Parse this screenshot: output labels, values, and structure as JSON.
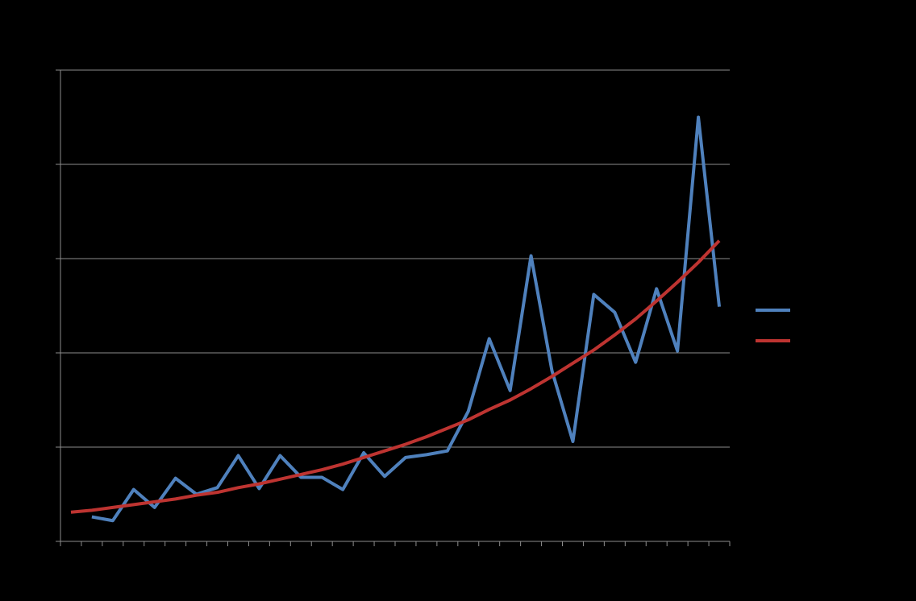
{
  "chart_data": {
    "type": "line",
    "categories": [
      null,
      null,
      null,
      null,
      null,
      null,
      null,
      null,
      null,
      null,
      null,
      null,
      null,
      null,
      null,
      null,
      null,
      null,
      null,
      null,
      null,
      null,
      null,
      null,
      null,
      null,
      null,
      null,
      null,
      null,
      null,
      null
    ],
    "series": [
      {
        "color": "#4f81bd",
        "values": [
          null,
          0.26,
          0.22,
          0.55,
          0.36,
          0.67,
          0.5,
          0.57,
          0.91,
          0.56,
          0.91,
          0.68,
          0.68,
          0.55,
          0.94,
          0.69,
          0.89,
          0.92,
          0.96,
          1.38,
          2.15,
          1.6,
          3.03,
          1.81,
          1.06,
          2.62,
          2.43,
          1.9,
          2.68,
          2.02,
          4.5,
          2.49
        ]
      },
      {
        "color": "#be3431",
        "values": [
          0.31,
          0.33,
          0.36,
          0.39,
          0.42,
          0.45,
          0.49,
          0.52,
          0.57,
          0.61,
          0.66,
          0.71,
          0.76,
          0.82,
          0.89,
          0.96,
          1.03,
          1.11,
          1.2,
          1.29,
          1.4,
          1.5,
          1.62,
          1.75,
          1.89,
          2.03,
          2.19,
          2.36,
          2.55,
          2.75,
          2.96,
          3.19
        ]
      }
    ],
    "ylim": [
      0,
      5
    ],
    "yticks": [
      0,
      1,
      2,
      3,
      4,
      5
    ],
    "grid": true,
    "legend": "right"
  }
}
